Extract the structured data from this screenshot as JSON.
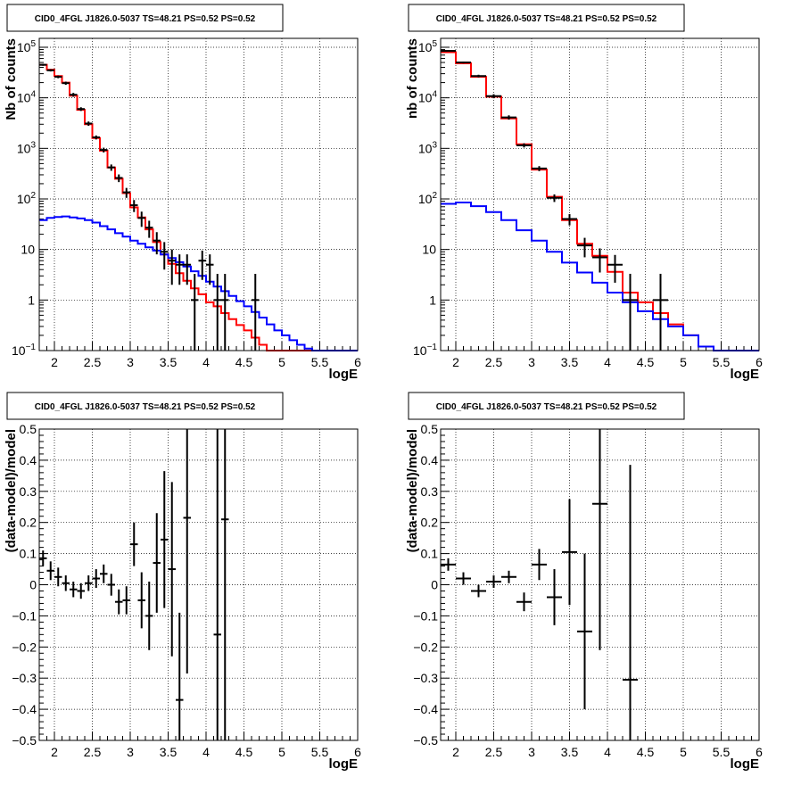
{
  "chart_data": [
    {
      "type": "step",
      "title": "CID0_4FGL J1826.0-5037 TS=48.21 PS=0.52 PS=0.52",
      "xlabel": "logE",
      "ylabel": "Nb of counts",
      "xlim": [
        1.8,
        6.0
      ],
      "ylim": [
        0.1,
        150000
      ],
      "yscale": "log",
      "grid": true,
      "xticks": [
        "2",
        "2.5",
        "3",
        "3.5",
        "4",
        "4.5",
        "5",
        "5.5",
        "6"
      ],
      "yticks": [
        {
          "v": 0.1,
          "t": "10",
          "sup": "−1"
        },
        {
          "v": 1,
          "t": "1",
          "sup": ""
        },
        {
          "v": 10,
          "t": "10",
          "sup": ""
        },
        {
          "v": 100,
          "t": "10",
          "sup": "2"
        },
        {
          "v": 1000,
          "t": "10",
          "sup": "3"
        },
        {
          "v": 10000,
          "t": "10",
          "sup": "4"
        },
        {
          "v": 100000,
          "t": "10",
          "sup": "5"
        }
      ],
      "bin_edges": [
        1.8,
        1.9,
        2.0,
        2.1,
        2.2,
        2.3,
        2.4,
        2.5,
        2.6,
        2.7,
        2.8,
        2.9,
        3.0,
        3.1,
        3.2,
        3.3,
        3.4,
        3.5,
        3.6,
        3.7,
        3.8,
        3.9,
        4.0,
        4.1,
        4.2,
        4.3,
        4.4,
        4.5,
        4.6,
        4.7,
        4.8,
        4.9,
        5.0,
        5.1,
        5.2,
        5.3,
        5.4,
        5.5,
        5.6,
        5.7,
        5.8,
        5.9,
        6.0
      ],
      "series": [
        {
          "color": "#ff0000",
          "values": [
            45000,
            36000,
            27000,
            20000,
            11000,
            5800,
            3000,
            1600,
            900,
            420,
            250,
            130,
            68,
            43,
            25,
            14,
            8,
            5.2,
            3.4,
            2.4,
            1.7,
            1.3,
            0.9,
            0.75,
            0.55,
            0.42,
            0.32,
            0.25,
            0.18,
            0.13,
            0.1,
            0.1,
            0.1,
            0.1,
            0.1,
            0.1,
            0.1,
            0.1,
            0.1,
            0.1,
            0.1,
            0.1
          ]
        },
        {
          "color": "#0000ff",
          "values": [
            38,
            42,
            44,
            45,
            43,
            41,
            38,
            34,
            29,
            25,
            21,
            18,
            15,
            13,
            11,
            9.5,
            8,
            6.8,
            5.6,
            4.6,
            3.7,
            3.0,
            2.3,
            1.85,
            1.5,
            1.2,
            0.95,
            0.75,
            0.58,
            0.45,
            0.33,
            0.25,
            0.2,
            0.16,
            0.13,
            0.11,
            0.1,
            0.1,
            0.1,
            0.1,
            0.1,
            0.1
          ]
        }
      ],
      "points": [
        {
          "x": 1.85,
          "y": 45000,
          "xe": 0.05,
          "ey": [
            2000,
            2000
          ]
        },
        {
          "x": 1.95,
          "y": 35000,
          "xe": 0.05,
          "ey": [
            1800,
            1800
          ]
        },
        {
          "x": 2.05,
          "y": 26000,
          "xe": 0.05,
          "ey": [
            1600,
            1600
          ]
        },
        {
          "x": 2.15,
          "y": 19500,
          "xe": 0.05,
          "ey": [
            1400,
            1400
          ]
        },
        {
          "x": 2.25,
          "y": 11500,
          "xe": 0.05,
          "ey": [
            1000,
            1000
          ]
        },
        {
          "x": 2.35,
          "y": 6000,
          "xe": 0.05,
          "ey": [
            500,
            500
          ]
        },
        {
          "x": 2.45,
          "y": 3100,
          "xe": 0.05,
          "ey": [
            300,
            300
          ]
        },
        {
          "x": 2.55,
          "y": 1650,
          "xe": 0.05,
          "ey": [
            150,
            150
          ]
        },
        {
          "x": 2.65,
          "y": 930,
          "xe": 0.05,
          "ey": [
            100,
            100
          ]
        },
        {
          "x": 2.75,
          "y": 420,
          "xe": 0.05,
          "ey": [
            60,
            60
          ]
        },
        {
          "x": 2.85,
          "y": 260,
          "xe": 0.05,
          "ey": [
            45,
            45
          ]
        },
        {
          "x": 2.95,
          "y": 135,
          "xe": 0.05,
          "ey": [
            30,
            30
          ]
        },
        {
          "x": 3.05,
          "y": 75,
          "xe": 0.05,
          "ey": [
            20,
            20
          ]
        },
        {
          "x": 3.15,
          "y": 42,
          "xe": 0.05,
          "ey": [
            14,
            14
          ]
        },
        {
          "x": 3.25,
          "y": 27,
          "xe": 0.05,
          "ey": [
            10,
            10
          ]
        },
        {
          "x": 3.35,
          "y": 15,
          "xe": 0.05,
          "ey": [
            7,
            7
          ]
        },
        {
          "x": 3.45,
          "y": 9,
          "xe": 0.05,
          "ey": [
            5,
            5
          ]
        },
        {
          "x": 3.55,
          "y": 6,
          "xe": 0.05,
          "ey": [
            4,
            4
          ]
        },
        {
          "x": 3.65,
          "y": 5,
          "xe": 0.05,
          "ey": [
            3,
            3
          ]
        },
        {
          "x": 3.75,
          "y": 5,
          "xe": 0.05,
          "ey": [
            3,
            3
          ]
        },
        {
          "x": 3.85,
          "y": 1,
          "xe": 0.05,
          "ey": [
            0.9,
            2.3
          ]
        },
        {
          "x": 3.95,
          "y": 6,
          "xe": 0.05,
          "ey": [
            3.5,
            3.5
          ]
        },
        {
          "x": 4.05,
          "y": 5,
          "xe": 0.05,
          "ey": [
            3,
            3
          ]
        },
        {
          "x": 4.15,
          "y": 1,
          "xe": 0.05,
          "ey": [
            0.9,
            2.3
          ]
        },
        {
          "x": 4.25,
          "y": 1,
          "xe": 0.05,
          "ey": [
            0.9,
            2.3
          ]
        },
        {
          "x": 4.65,
          "y": 1,
          "xe": 0.05,
          "ey": [
            0.9,
            2.3
          ]
        }
      ]
    },
    {
      "type": "step",
      "title": "CID0_4FGL J1826.0-5037 TS=48.21 PS=0.52 PS=0.52",
      "xlabel": "logE",
      "ylabel": "nb of counts",
      "xlim": [
        1.8,
        6.0
      ],
      "ylim": [
        0.1,
        150000
      ],
      "yscale": "log",
      "grid": true,
      "xticks": [
        "2",
        "2.5",
        "3",
        "3.5",
        "4",
        "4.5",
        "5",
        "5.5",
        "6"
      ],
      "yticks": [
        {
          "v": 0.1,
          "t": "10",
          "sup": "−1"
        },
        {
          "v": 1,
          "t": "1",
          "sup": ""
        },
        {
          "v": 10,
          "t": "10",
          "sup": ""
        },
        {
          "v": 100,
          "t": "10",
          "sup": "2"
        },
        {
          "v": 1000,
          "t": "10",
          "sup": "3"
        },
        {
          "v": 10000,
          "t": "10",
          "sup": "4"
        },
        {
          "v": 100000,
          "t": "10",
          "sup": "5"
        }
      ],
      "bin_edges": [
        1.8,
        2.0,
        2.2,
        2.4,
        2.6,
        2.8,
        3.0,
        3.2,
        3.4,
        3.6,
        3.8,
        4.0,
        4.2,
        4.4,
        4.6,
        4.8,
        5.0,
        5.2,
        5.4,
        5.6,
        5.8,
        6.0
      ],
      "series": [
        {
          "color": "#ff0000",
          "values": [
            80000,
            48000,
            26000,
            10500,
            3900,
            1200,
            380,
            110,
            38,
            13,
            7.5,
            3.6,
            1.4,
            0.9,
            0.55,
            0.33,
            0.2,
            0.12,
            0.1,
            0.1,
            0.1
          ]
        },
        {
          "color": "#0000ff",
          "values": [
            80,
            85,
            72,
            55,
            38,
            24,
            15,
            9,
            5.5,
            3.5,
            2.2,
            1.4,
            0.9,
            0.6,
            0.42,
            0.3,
            0.2,
            0.12,
            0.1,
            0.1,
            0.1
          ]
        }
      ],
      "points": [
        {
          "x": 1.9,
          "y": 85000,
          "xe": 0.1,
          "ey": [
            3000,
            3000
          ]
        },
        {
          "x": 2.1,
          "y": 50000,
          "xe": 0.1,
          "ey": [
            2200,
            2200
          ]
        },
        {
          "x": 2.3,
          "y": 27000,
          "xe": 0.1,
          "ey": [
            1600,
            1600
          ]
        },
        {
          "x": 2.5,
          "y": 10800,
          "xe": 0.1,
          "ey": [
            1000,
            1000
          ]
        },
        {
          "x": 2.7,
          "y": 4100,
          "xe": 0.1,
          "ey": [
            400,
            400
          ]
        },
        {
          "x": 2.9,
          "y": 1150,
          "xe": 0.1,
          "ey": [
            110,
            110
          ]
        },
        {
          "x": 3.1,
          "y": 400,
          "xe": 0.1,
          "ey": [
            45,
            45
          ]
        },
        {
          "x": 3.3,
          "y": 105,
          "xe": 0.1,
          "ey": [
            18,
            18
          ]
        },
        {
          "x": 3.5,
          "y": 40,
          "xe": 0.1,
          "ey": [
            10,
            10
          ]
        },
        {
          "x": 3.7,
          "y": 12,
          "xe": 0.1,
          "ey": [
            5,
            5
          ]
        },
        {
          "x": 3.9,
          "y": 7,
          "xe": 0.1,
          "ey": [
            3.5,
            3.5
          ]
        },
        {
          "x": 4.1,
          "y": 5,
          "xe": 0.1,
          "ey": [
            2.8,
            2.8
          ]
        },
        {
          "x": 4.3,
          "y": 1,
          "xe": 0.1,
          "ey": [
            0.9,
            2.3
          ]
        },
        {
          "x": 4.7,
          "y": 1,
          "xe": 0.1,
          "ey": [
            0.9,
            2.3
          ]
        }
      ]
    },
    {
      "type": "scatter",
      "title": "CID0_4FGL J1826.0-5037 TS=48.21 PS=0.52 PS=0.52",
      "xlabel": "logE",
      "ylabel": "(data-model)/model",
      "xlim": [
        1.8,
        6.0
      ],
      "ylim": [
        -0.5,
        0.5
      ],
      "grid": true,
      "xticks": [
        "2",
        "2.5",
        "3",
        "3.5",
        "4",
        "4.5",
        "5",
        "5.5",
        "6"
      ],
      "yticks": [
        "−0.5",
        "−0.4",
        "−0.3",
        "−0.2",
        "−0.1",
        "0",
        "0.1",
        "0.2",
        "0.3",
        "0.4",
        "0.5"
      ],
      "points": [
        {
          "x": 1.85,
          "y": 0.085,
          "xe": 0.05,
          "ey": [
            0.025,
            0.025
          ]
        },
        {
          "x": 1.95,
          "y": 0.045,
          "xe": 0.05,
          "ey": [
            0.03,
            0.03
          ]
        },
        {
          "x": 2.05,
          "y": 0.025,
          "xe": 0.05,
          "ey": [
            0.03,
            0.03
          ]
        },
        {
          "x": 2.15,
          "y": 0.005,
          "xe": 0.05,
          "ey": [
            0.025,
            0.025
          ]
        },
        {
          "x": 2.25,
          "y": -0.015,
          "xe": 0.05,
          "ey": [
            0.025,
            0.025
          ]
        },
        {
          "x": 2.35,
          "y": -0.02,
          "xe": 0.05,
          "ey": [
            0.025,
            0.025
          ]
        },
        {
          "x": 2.45,
          "y": 0.005,
          "xe": 0.05,
          "ey": [
            0.025,
            0.025
          ]
        },
        {
          "x": 2.55,
          "y": 0.02,
          "xe": 0.05,
          "ey": [
            0.03,
            0.03
          ]
        },
        {
          "x": 2.65,
          "y": 0.035,
          "xe": 0.05,
          "ey": [
            0.03,
            0.03
          ]
        },
        {
          "x": 2.75,
          "y": 0.0,
          "xe": 0.05,
          "ey": [
            0.035,
            0.035
          ]
        },
        {
          "x": 2.85,
          "y": -0.055,
          "xe": 0.05,
          "ey": [
            0.04,
            0.04
          ]
        },
        {
          "x": 2.95,
          "y": -0.05,
          "xe": 0.05,
          "ey": [
            0.045,
            0.045
          ]
        },
        {
          "x": 3.05,
          "y": 0.13,
          "xe": 0.05,
          "ey": [
            0.07,
            0.07
          ]
        },
        {
          "x": 3.15,
          "y": -0.05,
          "xe": 0.05,
          "ey": [
            0.09,
            0.09
          ]
        },
        {
          "x": 3.25,
          "y": -0.1,
          "xe": 0.05,
          "ey": [
            0.11,
            0.11
          ]
        },
        {
          "x": 3.35,
          "y": 0.07,
          "xe": 0.05,
          "ey": [
            0.16,
            0.16
          ]
        },
        {
          "x": 3.45,
          "y": 0.145,
          "xe": 0.05,
          "ey": [
            0.22,
            0.22
          ]
        },
        {
          "x": 3.55,
          "y": 0.05,
          "xe": 0.05,
          "ey": [
            0.28,
            0.28
          ]
        },
        {
          "x": 3.65,
          "y": -0.37,
          "xe": 0.05,
          "ey": [
            0.28,
            0.28
          ]
        },
        {
          "x": 3.75,
          "y": 0.215,
          "xe": 0.05,
          "ey": [
            0.5,
            0.5
          ]
        },
        {
          "x": 4.15,
          "y": -0.16,
          "xe": 0.05,
          "ey": [
            0.6,
            0.9
          ]
        },
        {
          "x": 4.25,
          "y": 0.21,
          "xe": 0.05,
          "ey": [
            0.9,
            0.9
          ]
        }
      ]
    },
    {
      "type": "scatter",
      "title": "CID0_4FGL J1826.0-5037 TS=48.21 PS=0.52 PS=0.52",
      "xlabel": "logE",
      "ylabel": "(data-model)/model",
      "xlim": [
        1.8,
        6.0
      ],
      "ylim": [
        -0.5,
        0.5
      ],
      "grid": true,
      "xticks": [
        "2",
        "2.5",
        "3",
        "3.5",
        "4",
        "4.5",
        "5",
        "5.5",
        "6"
      ],
      "yticks": [
        "−0.5",
        "−0.4",
        "−0.3",
        "−0.2",
        "−0.1",
        "0",
        "0.1",
        "0.2",
        "0.3",
        "0.4",
        "0.5"
      ],
      "points": [
        {
          "x": 1.9,
          "y": 0.065,
          "xe": 0.1,
          "ey": [
            0.02,
            0.02
          ]
        },
        {
          "x": 2.1,
          "y": 0.02,
          "xe": 0.1,
          "ey": [
            0.02,
            0.02
          ]
        },
        {
          "x": 2.3,
          "y": -0.02,
          "xe": 0.1,
          "ey": [
            0.02,
            0.02
          ]
        },
        {
          "x": 2.5,
          "y": 0.01,
          "xe": 0.1,
          "ey": [
            0.02,
            0.02
          ]
        },
        {
          "x": 2.7,
          "y": 0.025,
          "xe": 0.1,
          "ey": [
            0.02,
            0.02
          ]
        },
        {
          "x": 2.9,
          "y": -0.055,
          "xe": 0.1,
          "ey": [
            0.03,
            0.03
          ]
        },
        {
          "x": 3.1,
          "y": 0.065,
          "xe": 0.1,
          "ey": [
            0.05,
            0.05
          ]
        },
        {
          "x": 3.3,
          "y": -0.04,
          "xe": 0.1,
          "ey": [
            0.09,
            0.09
          ]
        },
        {
          "x": 3.5,
          "y": 0.105,
          "xe": 0.1,
          "ey": [
            0.17,
            0.17
          ]
        },
        {
          "x": 3.7,
          "y": -0.15,
          "xe": 0.1,
          "ey": [
            0.25,
            0.25
          ]
        },
        {
          "x": 3.9,
          "y": 0.26,
          "xe": 0.1,
          "ey": [
            0.47,
            0.47
          ]
        },
        {
          "x": 4.3,
          "y": -0.305,
          "xe": 0.1,
          "ey": [
            0.7,
            0.69
          ]
        }
      ]
    }
  ]
}
